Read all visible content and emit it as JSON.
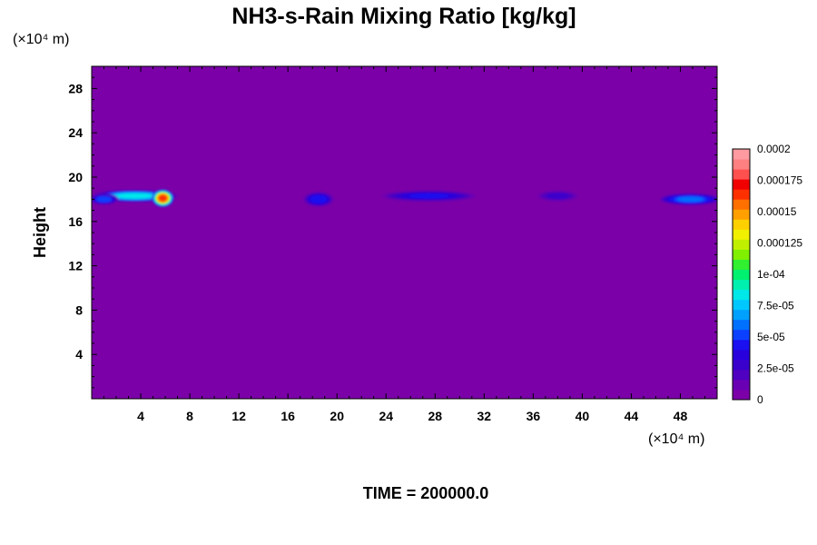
{
  "chart_data": {
    "type": "heatmap",
    "title": "NH3-s-Rain Mixing Ratio [kg/kg]",
    "ylabel": "Height",
    "xlabel": "",
    "x_unit": "(×10⁴ m)",
    "y_unit": "(×10⁴ m)",
    "xlim": [
      0,
      51
    ],
    "ylim": [
      0,
      30
    ],
    "x_ticks": [
      4,
      8,
      12,
      16,
      20,
      24,
      28,
      32,
      36,
      40,
      44,
      48
    ],
    "y_ticks": [
      4,
      8,
      12,
      16,
      20,
      24,
      28
    ],
    "colorbar": {
      "min": 0,
      "max": 0.0002,
      "tick_labels": [
        "0",
        "2.5e-05",
        "5e-05",
        "7.5e-05",
        "1e-04",
        "0.000125",
        "0.00015",
        "0.000175",
        "0.0002"
      ],
      "tick_values": [
        0,
        2.5e-05,
        5e-05,
        7.5e-05,
        0.0001,
        0.000125,
        0.00015,
        0.000175,
        0.0002
      ],
      "colors": [
        "#7b00a8",
        "#6a00b4",
        "#5000c0",
        "#3a00cc",
        "#2800dc",
        "#1a10f0",
        "#0c40ff",
        "#0070ff",
        "#00a0ff",
        "#00c8ff",
        "#00e8e8",
        "#00f0b0",
        "#00f070",
        "#30f030",
        "#80f000",
        "#c0f000",
        "#f0f000",
        "#ffd000",
        "#ffa000",
        "#ff7000",
        "#ff3000",
        "#f00000",
        "#ff5050",
        "#ff8080",
        "#ff9aa0"
      ]
    },
    "background_value": 0,
    "features": [
      {
        "x_center": 3.5,
        "y_center": 18.3,
        "x_half": 3.5,
        "y_half": 0.55,
        "peak": 9e-05
      },
      {
        "x_center": 1.0,
        "y_center": 18.0,
        "x_half": 1.2,
        "y_half": 0.5,
        "peak": 6e-05
      },
      {
        "x_center": 5.8,
        "y_center": 18.1,
        "x_half": 0.9,
        "y_half": 0.8,
        "peak": 0.00018
      },
      {
        "x_center": 18.5,
        "y_center": 18.0,
        "x_half": 1.3,
        "y_half": 0.7,
        "peak": 5e-05
      },
      {
        "x_center": 27.5,
        "y_center": 18.3,
        "x_half": 4.0,
        "y_half": 0.5,
        "peak": 4.5e-05
      },
      {
        "x_center": 38.0,
        "y_center": 18.3,
        "x_half": 1.8,
        "y_half": 0.5,
        "peak": 3e-05
      },
      {
        "x_center": 48.8,
        "y_center": 18.0,
        "x_half": 2.6,
        "y_half": 0.55,
        "peak": 6.5e-05
      }
    ]
  },
  "footer": {
    "time_label": "TIME = 200000.0"
  }
}
